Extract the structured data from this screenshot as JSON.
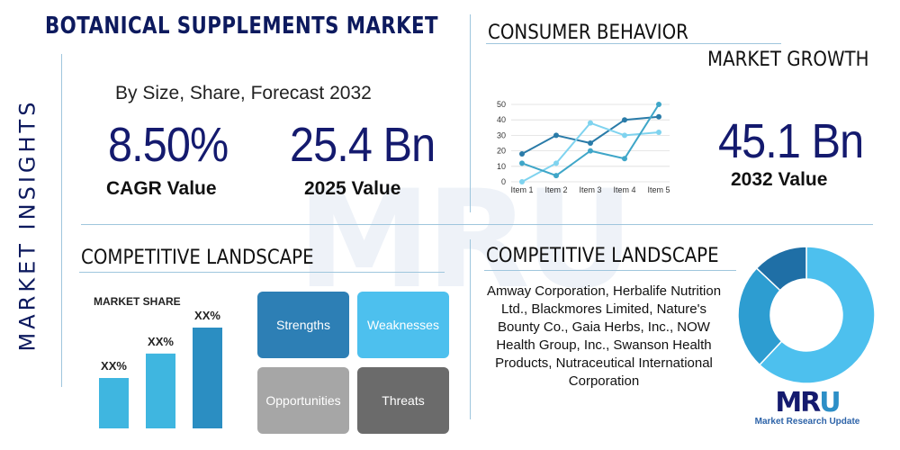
{
  "title": "BOTANICAL SUPPLEMENTS MARKET",
  "side_title": "MARKET INSIGHTS",
  "subtitle": "By Size, Share, Forecast 2032",
  "watermark": "MRU",
  "stats": {
    "cagr_value": "8.50%",
    "cagr_label": "CAGR Value",
    "value_2025": "25.4 Bn",
    "label_2025": "2025 Value",
    "value_2032": "45.1 Bn",
    "label_2032": "2032 Value"
  },
  "consumer_behavior": {
    "title": "CONSUMER BEHAVIOR"
  },
  "market_growth": {
    "title": "MARKET GROWTH"
  },
  "competitive_landscape_left": {
    "title": "COMPETITIVE LANDSCAPE"
  },
  "competitive_landscape_right": {
    "title": "COMPETITIVE LANDSCAPE"
  },
  "market_share": {
    "label": "MARKET SHARE"
  },
  "swot": {
    "strengths": "Strengths",
    "weaknesses": "Weaknesses",
    "opportunities": "Opportunities",
    "threats": "Threats"
  },
  "players_text": "Amway Corporation, Herbalife Nutrition Ltd., Blackmores Limited, Nature's Bounty Co., Gaia Herbs, Inc., NOW Health Group, Inc., Swanson Health Products, Nutraceutical International Corporation",
  "logo": {
    "mark_a": "MR",
    "mark_b": "U",
    "text": "Market Research Update"
  },
  "colors": {
    "navy": "#141a6e",
    "strengths": "#2d7fb5",
    "weaknesses": "#4dc0ee",
    "opportunities": "#a6a6a6",
    "threats": "#6b6b6b",
    "bar": "#3fb6e0",
    "bar_dark": "#2b8ec2"
  },
  "chart_data": [
    {
      "type": "line",
      "title": "",
      "categories": [
        "Item 1",
        "Item 2",
        "Item 3",
        "Item 4",
        "Item 5"
      ],
      "ylim": [
        0,
        50
      ],
      "yticks": [
        0,
        10,
        20,
        30,
        40,
        50
      ],
      "grid": true,
      "series": [
        {
          "color": "#2a7ba8",
          "values": [
            18,
            30,
            25,
            40,
            42
          ]
        },
        {
          "color": "#7fd3ef",
          "values": [
            0,
            12,
            38,
            30,
            32
          ]
        },
        {
          "color": "#3fa6c8",
          "values": [
            12,
            4,
            20,
            15,
            50
          ]
        }
      ]
    },
    {
      "type": "bar",
      "title": "MARKET SHARE",
      "categories": [
        "",
        "",
        ""
      ],
      "values": [
        33,
        49,
        66
      ],
      "data_labels": [
        "XX%",
        "XX%",
        "XX%"
      ],
      "colors": [
        "#3fb6e0",
        "#3fb6e0",
        "#2b8ec2"
      ]
    },
    {
      "type": "pie",
      "title": "",
      "donut": true,
      "values": [
        62,
        25,
        13
      ],
      "colors": [
        "#4dc0ee",
        "#2d9dd1",
        "#1f6fa6"
      ]
    }
  ]
}
